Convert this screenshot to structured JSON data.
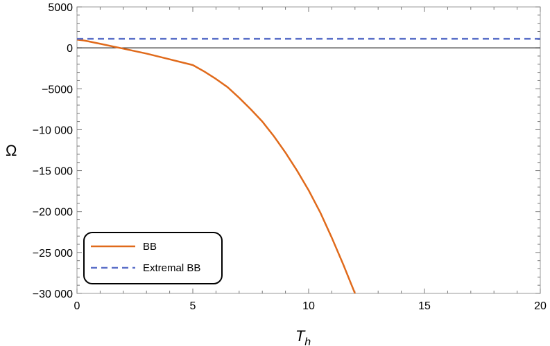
{
  "chart_data": {
    "type": "line",
    "title": "",
    "xlabel": "T",
    "xlabel_subscript": "h",
    "ylabel": "Ω",
    "xlim": [
      0,
      20
    ],
    "ylim": [
      -30000,
      5000
    ],
    "x_ticks": [
      0,
      5,
      10,
      15,
      20
    ],
    "x_tick_labels": [
      "0",
      "5",
      "10",
      "15",
      "20"
    ],
    "y_ticks": [
      5000,
      0,
      -5000,
      -10000,
      -15000,
      -20000,
      -25000,
      -30000
    ],
    "y_tick_labels": [
      "5000",
      "0",
      "−5000",
      "−10 000",
      "−15 000",
      "−20 000",
      "−25 000",
      "−30 000"
    ],
    "grid": false,
    "legend_position": "bottom-left",
    "series": [
      {
        "name": "BB",
        "color": "#e06a1b",
        "style": "solid",
        "x": [
          0,
          0.3,
          1,
          2,
          3,
          4,
          5,
          5.5,
          6,
          6.5,
          7,
          7.5,
          8,
          8.5,
          9,
          9.5,
          10,
          10.5,
          11,
          11.5,
          12
        ],
        "y": [
          1000,
          900,
          500,
          -100,
          -700,
          -1400,
          -2100,
          -2900,
          -3800,
          -4800,
          -6100,
          -7500,
          -9000,
          -10800,
          -12800,
          -15000,
          -17400,
          -20100,
          -23200,
          -26500,
          -30000
        ]
      },
      {
        "name": "Extremal BB",
        "color": "#5a6fc8",
        "style": "dashed",
        "x": [
          0,
          20
        ],
        "y": [
          1100,
          1100
        ]
      }
    ]
  }
}
